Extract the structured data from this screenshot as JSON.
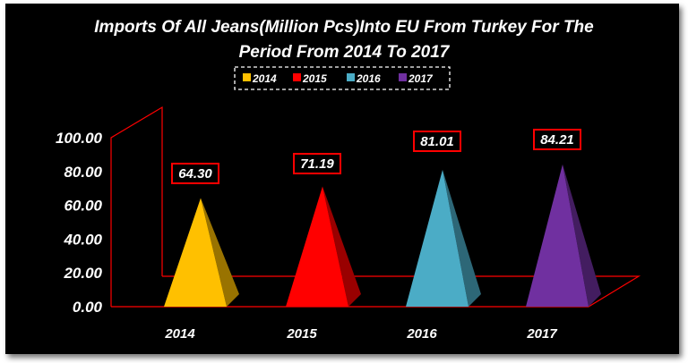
{
  "chart_data": {
    "type": "bar",
    "title_lines": [
      "Imports Of All Jeans(Million Pcs)Into EU From Turkey For The",
      "Period From 2014 To 2017"
    ],
    "categories": [
      "2014",
      "2015",
      "2016",
      "2017"
    ],
    "values": [
      64.3,
      71.19,
      81.01,
      84.21
    ],
    "value_labels": [
      "64.30",
      "71.19",
      "81.01",
      "84.21"
    ],
    "series": [
      {
        "name": "2014",
        "color": "#ffc000"
      },
      {
        "name": "2015",
        "color": "#ff0000"
      },
      {
        "name": "2016",
        "color": "#4bacc6"
      },
      {
        "name": "2017",
        "color": "#7030a0"
      }
    ],
    "ylim": [
      0,
      100
    ],
    "yticks": [
      "0.00",
      "20.00",
      "40.00",
      "60.00",
      "80.00",
      "100.00"
    ],
    "bar_shape": "pyramid",
    "legend_position": "top-center",
    "grid": false,
    "background": "#000000",
    "axis_color": "#ff0000"
  }
}
